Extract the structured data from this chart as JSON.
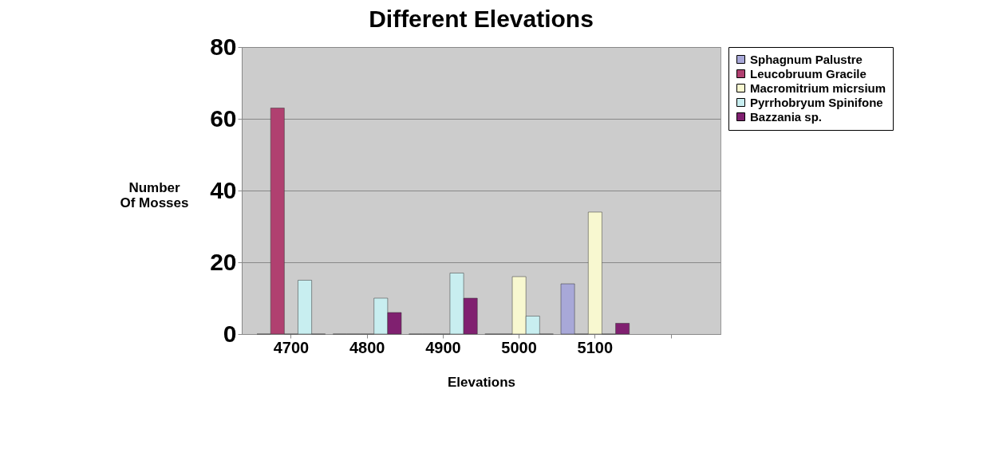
{
  "chart_data": {
    "type": "bar",
    "title": "Different Elevations",
    "xlabel": "Elevations",
    "ylabel": "Number Of Mosses",
    "categories": [
      "4700",
      "4800",
      "4900",
      "5000",
      "5100",
      null
    ],
    "series": [
      {
        "name": "Sphagnum Palustre",
        "color": "#a8a8d8",
        "values": [
          0,
          0,
          0,
          0,
          14,
          null
        ]
      },
      {
        "name": "Leucobruum Gracile",
        "color": "#b04070",
        "values": [
          63,
          0,
          0,
          0,
          0,
          null
        ]
      },
      {
        "name": "Macromitrium micrsium",
        "color": "#f8f8d0",
        "values": [
          0,
          0,
          0,
          16,
          34,
          null
        ]
      },
      {
        "name": "Pyrrhobryum Spinifone",
        "color": "#c8eef0",
        "values": [
          15,
          10,
          17,
          5,
          0,
          null
        ]
      },
      {
        "name": "Bazzania sp.",
        "color": "#802070",
        "values": [
          0,
          6,
          10,
          0,
          3,
          null
        ]
      }
    ],
    "ylim": [
      0,
      80
    ],
    "yticks": [
      0,
      20,
      40,
      60,
      80
    ],
    "grid": "y",
    "legend": "top right"
  }
}
